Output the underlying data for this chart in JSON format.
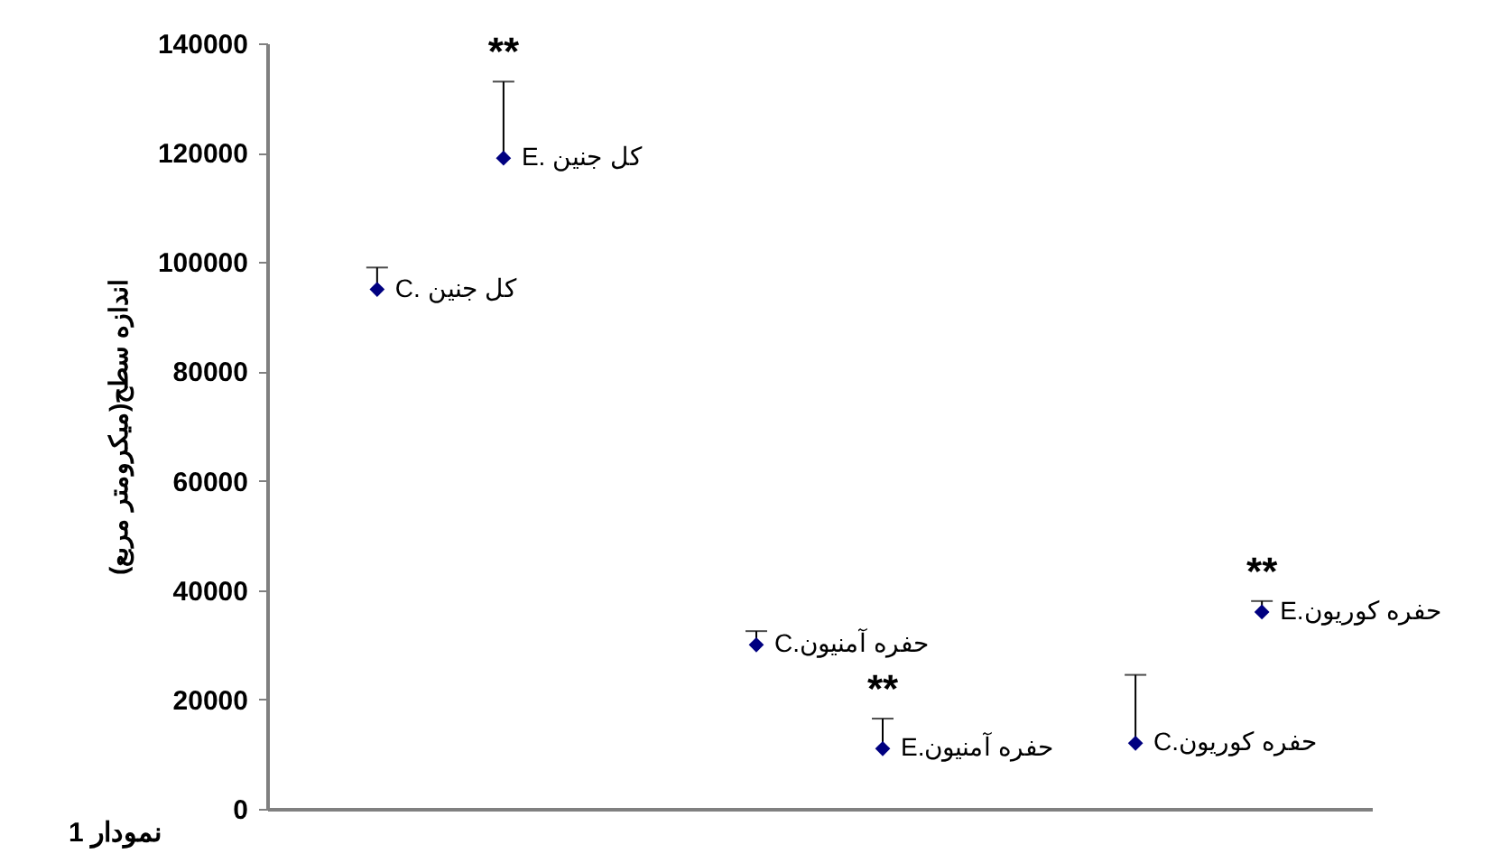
{
  "chart_data": {
    "type": "scatter",
    "ylabel": "اندازه سطح(میکرومتر مربع)",
    "categories": [
      null,
      null,
      null,
      null,
      null,
      null,
      null,
      null
    ],
    "series": [
      {
        "name": "C. کل جنین",
        "color": "#000080",
        "values": [
          95000,
          null,
          null,
          null,
          null,
          null,
          null,
          null
        ],
        "errors": [
          [
            95000,
            99000
          ],
          null,
          null,
          null,
          null,
          null,
          null,
          null
        ]
      },
      {
        "name": "E. کل جنین",
        "color": "#000080",
        "values": [
          null,
          119000,
          null,
          null,
          null,
          null,
          null,
          null
        ],
        "errors": [
          null,
          [
            119000,
            133000
          ],
          null,
          null,
          null,
          null,
          null,
          null
        ]
      },
      {
        "name": "C.حفره آمنیون",
        "color": "#000080",
        "values": [
          null,
          null,
          null,
          30000,
          null,
          null,
          null,
          null
        ],
        "errors": [
          null,
          null,
          null,
          [
            30000,
            32500
          ],
          null,
          null,
          null,
          null
        ]
      },
      {
        "name": "E.حفره آمنیون",
        "color": "#000080",
        "values": [
          null,
          null,
          null,
          null,
          11000,
          null,
          null,
          null
        ],
        "errors": [
          null,
          null,
          null,
          null,
          [
            11000,
            16500
          ],
          null,
          null,
          null
        ]
      },
      {
        "name": "C.حفره کوریون",
        "color": "#000080",
        "values": [
          null,
          null,
          null,
          null,
          null,
          null,
          12000,
          null
        ],
        "errors": [
          null,
          null,
          null,
          null,
          null,
          null,
          [
            12000,
            24500
          ],
          null
        ]
      },
      {
        "name": "E.حفره کوریون",
        "color": "#000080",
        "values": [
          null,
          null,
          null,
          null,
          null,
          null,
          null,
          36000
        ],
        "errors": [
          null,
          null,
          null,
          null,
          null,
          null,
          null,
          [
            36000,
            38000
          ]
        ]
      }
    ],
    "ylim": [
      0,
      140000
    ],
    "yticks": [
      0,
      20000,
      40000,
      60000,
      80000,
      100000,
      120000,
      140000
    ],
    "tick_labels": "y",
    "marker": "diamond",
    "annotations": [
      {
        "text": "**",
        "y": 133000
      },
      {
        "text": "**",
        "y": 16500
      },
      {
        "text": "**",
        "y": 38000
      },
      "نمودار 1"
    ]
  }
}
